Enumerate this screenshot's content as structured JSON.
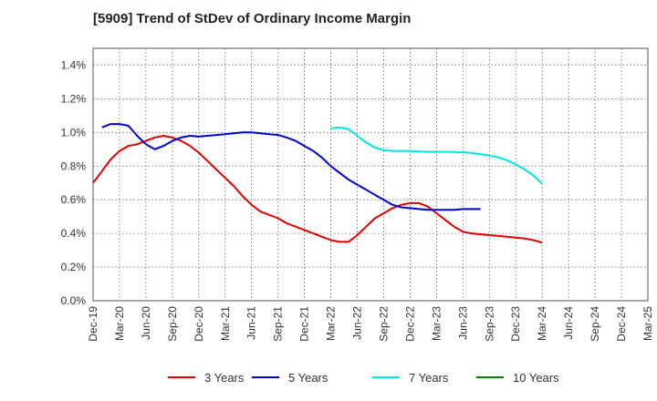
{
  "chart_data": {
    "type": "line",
    "title": "[5909]  Trend of StDev of Ordinary Income Margin",
    "xlabel": "",
    "ylabel": "",
    "x_ticks": [
      "Dec-19",
      "Mar-20",
      "Jun-20",
      "Sep-20",
      "Dec-20",
      "Mar-21",
      "Jun-21",
      "Sep-21",
      "Dec-21",
      "Mar-22",
      "Jun-22",
      "Sep-22",
      "Dec-22",
      "Mar-23",
      "Jun-23",
      "Sep-23",
      "Dec-23",
      "Mar-24",
      "Jun-24",
      "Sep-24",
      "Dec-24",
      "Mar-25"
    ],
    "y_ticks": [
      "0.0%",
      "0.2%",
      "0.4%",
      "0.6%",
      "0.8%",
      "1.0%",
      "1.2%",
      "1.4%"
    ],
    "ylim": [
      0,
      1.5
    ],
    "grid": true,
    "legend_position": "bottom",
    "series": [
      {
        "name": "3 Years",
        "color": "#e00000",
        "start_index": 0,
        "values": [
          0.7,
          0.77,
          0.84,
          0.89,
          0.92,
          0.93,
          0.95,
          0.97,
          0.98,
          0.97,
          0.95,
          0.92,
          0.88,
          0.83,
          0.78,
          0.73,
          0.68,
          0.62,
          0.57,
          0.53,
          0.51,
          0.49,
          0.46,
          0.44,
          0.42,
          0.4,
          0.38,
          0.36,
          0.35,
          0.35,
          0.39,
          0.44,
          0.49,
          0.52,
          0.55,
          0.57,
          0.58,
          0.58,
          0.56,
          0.52,
          0.48,
          0.44,
          0.41,
          0.4,
          0.395,
          0.39,
          0.385,
          0.38,
          0.375,
          0.37,
          0.36,
          0.345
        ]
      },
      {
        "name": "5 Years",
        "color": "#0000cc",
        "start_index": 1,
        "values": [
          1.03,
          1.05,
          1.05,
          1.04,
          0.98,
          0.93,
          0.9,
          0.92,
          0.95,
          0.97,
          0.98,
          0.975,
          0.98,
          0.985,
          0.99,
          0.995,
          1.0,
          1.0,
          0.995,
          0.99,
          0.985,
          0.97,
          0.95,
          0.92,
          0.89,
          0.85,
          0.8,
          0.76,
          0.72,
          0.69,
          0.66,
          0.63,
          0.6,
          0.57,
          0.555,
          0.55,
          0.545,
          0.54,
          0.54,
          0.54,
          0.54,
          0.545,
          0.545,
          0.545
        ]
      },
      {
        "name": "7 Years",
        "color": "#00e5e5",
        "start_index": 27,
        "values": [
          1.025,
          1.03,
          1.02,
          0.98,
          0.94,
          0.91,
          0.895,
          0.89,
          0.89,
          0.89,
          0.887,
          0.885,
          0.885,
          0.885,
          0.884,
          0.882,
          0.878,
          0.87,
          0.862,
          0.852,
          0.835,
          0.81,
          0.78,
          0.745,
          0.695
        ]
      },
      {
        "name": "10 Years",
        "color": "#008000",
        "start_index": 0,
        "values": []
      }
    ]
  }
}
